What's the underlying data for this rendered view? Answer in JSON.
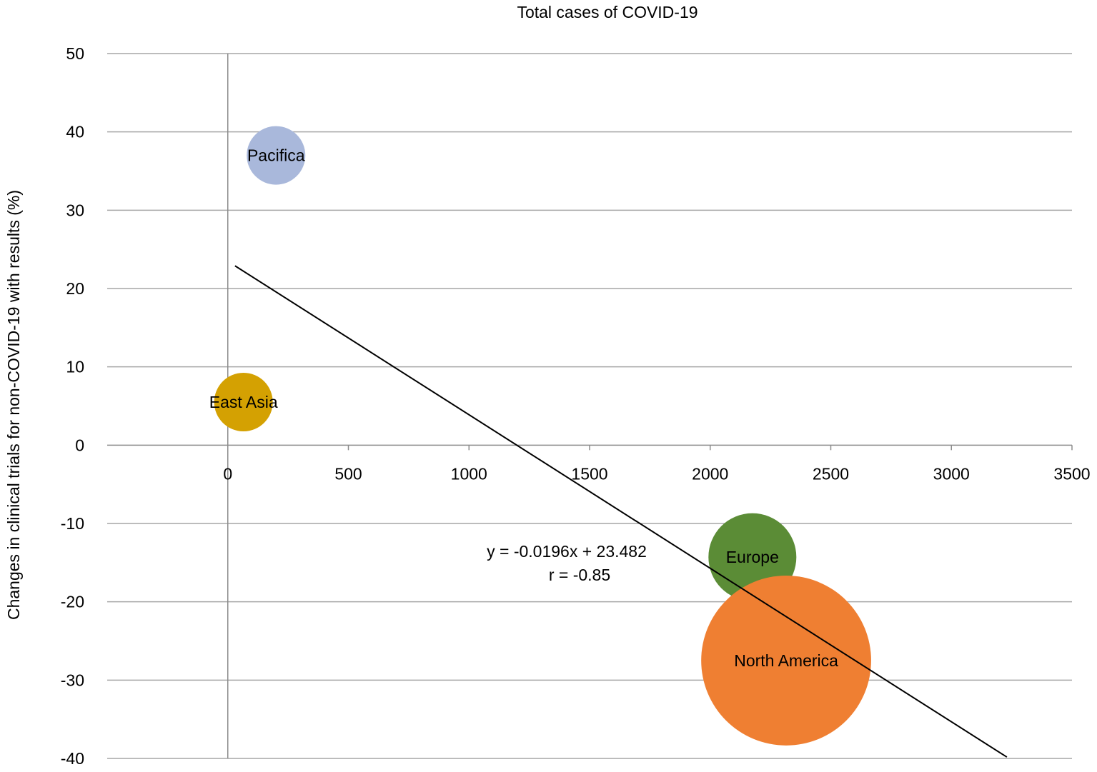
{
  "chart_data": {
    "type": "scatter",
    "subtype": "bubble",
    "title": "Total cases of COVID-19",
    "xlabel": "",
    "ylabel": "Changes in clinical trials for non-COVID-19 with results  (%)",
    "xlim": [
      -500,
      3500
    ],
    "ylim": [
      -40,
      50
    ],
    "x_ticks": [
      0,
      500,
      1000,
      1500,
      2000,
      2500,
      3000,
      3500
    ],
    "y_ticks": [
      50,
      40,
      30,
      20,
      10,
      0,
      -10,
      -20,
      -30,
      -40
    ],
    "grid": true,
    "legend": "none",
    "series": [
      {
        "points": [
          {
            "label": "Pacifica",
            "x": 200,
            "y": 37,
            "size": 1.0,
            "color": "#a9b8db"
          },
          {
            "label": "East Asia",
            "x": 65,
            "y": 5.5,
            "size": 1.0,
            "color": "#d4a102"
          },
          {
            "label": "Europe",
            "x": 2175,
            "y": -14.3,
            "size": 1.5,
            "color": "#5b8c36"
          },
          {
            "label": "North  America",
            "x": 2315,
            "y": -27.5,
            "size": 2.9,
            "color": "#ef7f32"
          }
        ]
      }
    ],
    "trendline": {
      "slope": -0.0196,
      "intercept": 23.482,
      "x_range": [
        30,
        3230
      ],
      "color": "#000000",
      "equation": "y = -0.0196x + 23.482",
      "r_label": "r = -0.85"
    },
    "colors": {
      "grid": "#a6a6a6",
      "axis": "#8c8c8c",
      "trendline": "#000000"
    }
  }
}
